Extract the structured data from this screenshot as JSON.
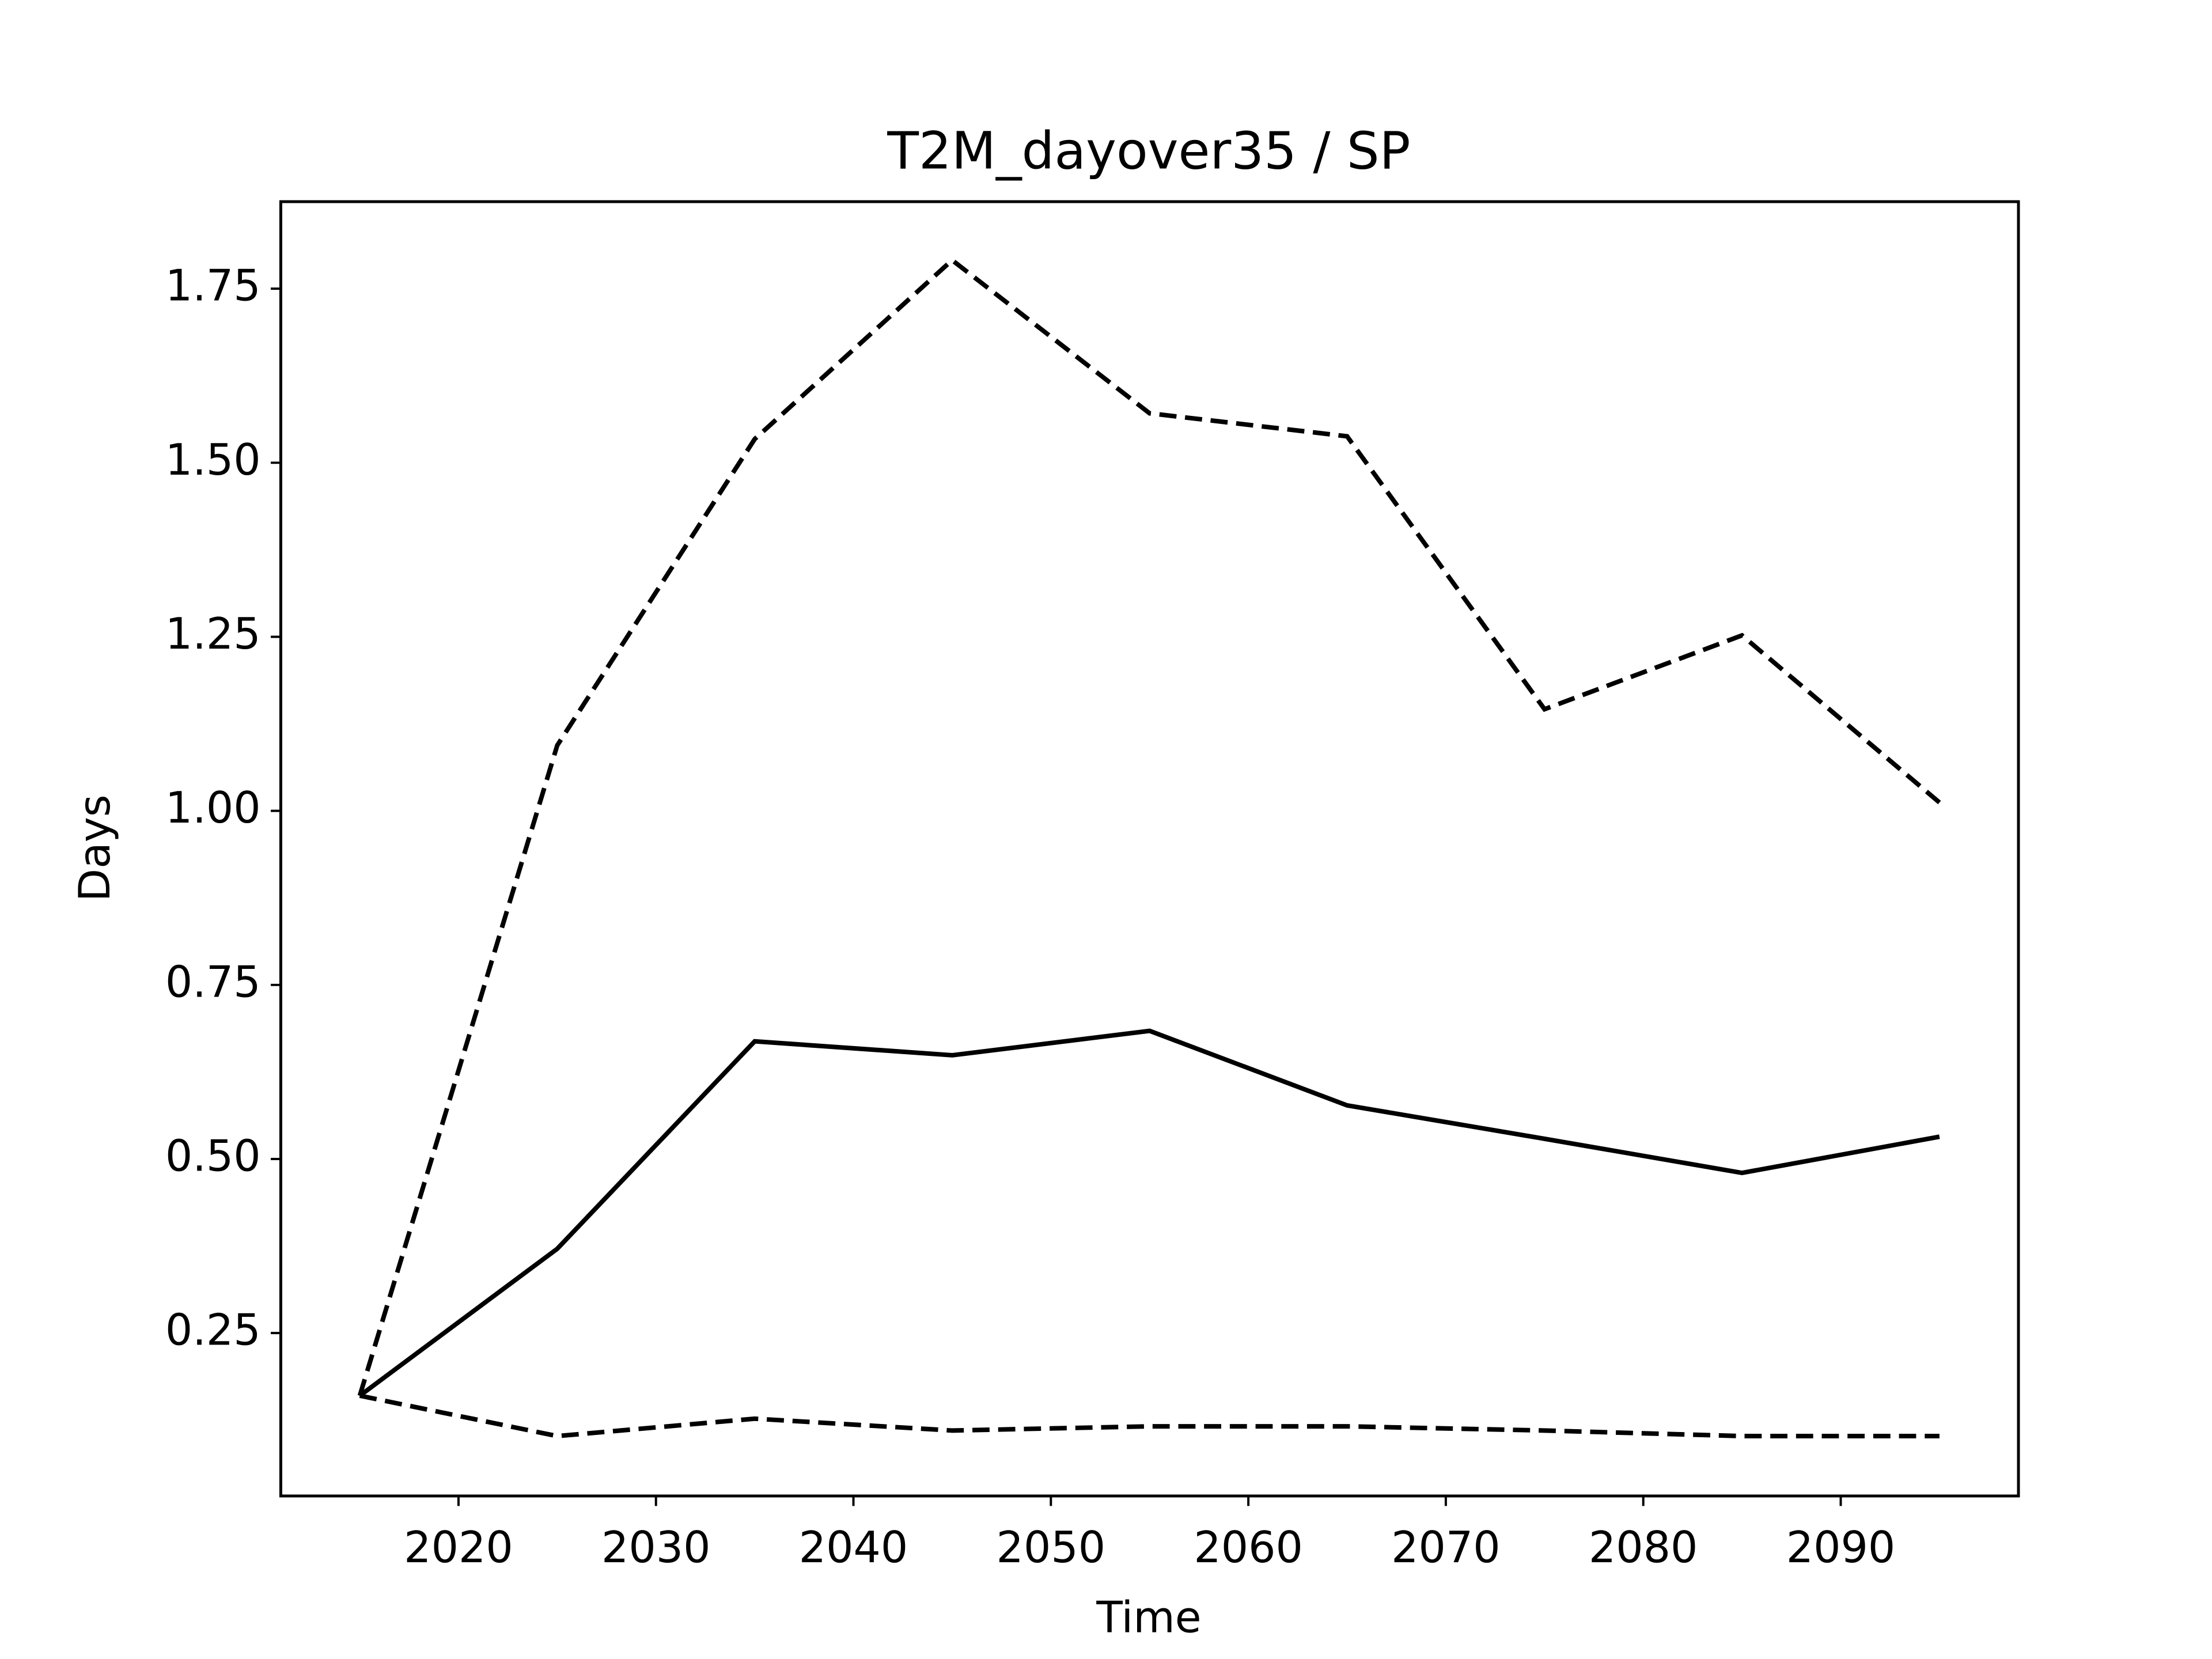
{
  "chart_data": {
    "type": "line",
    "title": "T2M_dayover35 / SP",
    "xlabel": "Time",
    "ylabel": "Days",
    "x": [
      2015,
      2025,
      2035,
      2045,
      2055,
      2065,
      2075,
      2085,
      2095
    ],
    "series": [
      {
        "color": "#000000",
        "dash": false,
        "values": [
          0.16,
          0.371,
          0.669,
          0.649,
          0.684,
          0.577,
          0.529,
          0.48,
          0.532
        ]
      },
      {
        "color": "#000000",
        "dash": true,
        "values": [
          0.16,
          1.094,
          1.534,
          1.791,
          1.571,
          1.538,
          1.146,
          1.252,
          1.012
        ]
      },
      {
        "color": "#000000",
        "dash": true,
        "values": [
          0.16,
          0.102,
          0.127,
          0.11,
          0.116,
          0.116,
          0.11,
          0.102,
          0.102
        ]
      }
    ],
    "xlim": [
      2011,
      2099
    ],
    "ylim": [
      0.016,
      1.875
    ],
    "xticks": [
      2020,
      2030,
      2040,
      2050,
      2060,
      2070,
      2080,
      2090
    ],
    "yticks": [
      {
        "value": 0.25,
        "label": "0.25"
      },
      {
        "value": 0.5,
        "label": "0.50"
      },
      {
        "value": 0.75,
        "label": "0.75"
      },
      {
        "value": 1,
        "label": "1.00"
      },
      {
        "value": 1.25,
        "label": "1.25"
      },
      {
        "value": 1.5,
        "label": "1.50"
      },
      {
        "value": 1.75,
        "label": "1.75"
      }
    ]
  }
}
